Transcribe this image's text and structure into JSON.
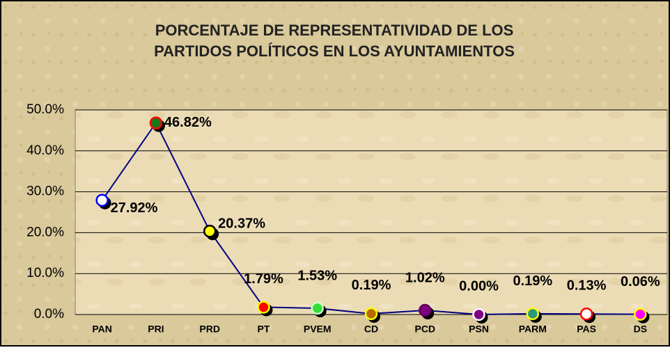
{
  "chart_data": {
    "type": "line",
    "title": [
      "PORCENTAJE DE REPRESENTATIVIDAD DE LOS",
      "PARTIDOS POLÍTICOS EN LOS AYUNTAMIENTOS"
    ],
    "categories": [
      "PAN",
      "PRI",
      "PRD",
      "PT",
      "PVEM",
      "CD",
      "PCD",
      "PSN",
      "PARM",
      "PAS",
      "DS"
    ],
    "values": [
      27.92,
      46.82,
      20.37,
      1.79,
      1.53,
      0.19,
      1.02,
      0.0,
      0.19,
      0.13,
      0.06
    ],
    "value_labels": [
      "27.92%",
      "46.82%",
      "20.37%",
      "1.79%",
      "1.53%",
      "0.19%",
      "1.02%",
      "0.00%",
      "0.19%",
      "0.13%",
      "0.06%"
    ],
    "color": "#000080",
    "marker_fill": [
      "#ffffff",
      "#1a7a1a",
      "#ffff00",
      "#ff0000",
      "#33dd33",
      "#b86a00",
      "#800080",
      "#800080",
      "#2a9a7a",
      "#ffffff",
      "#ff00ff"
    ],
    "marker_edge": [
      "#0000ff",
      "#ff0000",
      "#000000",
      "#ffff00",
      "#ccffcc",
      "#ffff00",
      "#5a005a",
      "#ffffff",
      "#ffff00",
      "#ff0000",
      "#ffff00"
    ],
    "ylim": [
      0,
      50
    ],
    "yticks": [
      {
        "value": 0,
        "label": "0.0%"
      },
      {
        "value": 10,
        "label": "10.0%"
      },
      {
        "value": 20,
        "label": "20.0%"
      },
      {
        "value": 30,
        "label": "30.0%"
      },
      {
        "value": 40,
        "label": "40.0%"
      },
      {
        "value": 50,
        "label": "50.0%"
      }
    ],
    "grid": true
  }
}
